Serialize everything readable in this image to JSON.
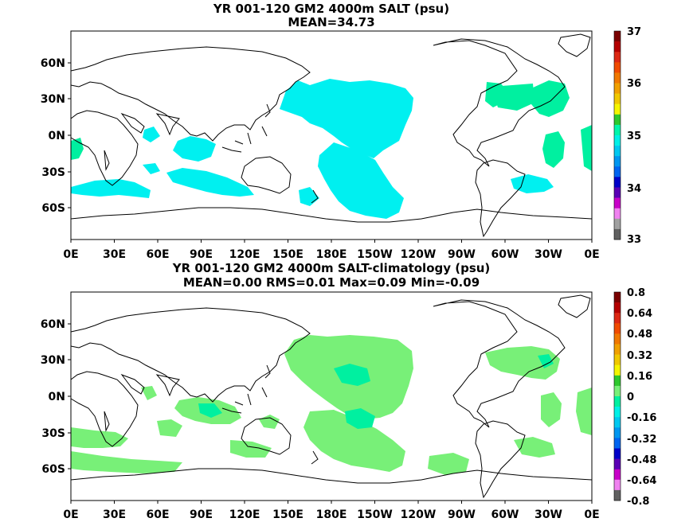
{
  "panels": [
    {
      "title": "YR 001-120 GM2 4000m SALT (psu)",
      "subtitle": "MEAN=34.73",
      "x_ticks": [
        "0E",
        "30E",
        "60E",
        "90E",
        "120E",
        "150E",
        "180E",
        "150W",
        "120W",
        "90W",
        "60W",
        "30W",
        "0E"
      ],
      "y_ticks": [
        "60N",
        "30N",
        "0N",
        "30S",
        "60S"
      ],
      "colorbar": {
        "labels": [
          "37",
          "36",
          "35",
          "34",
          "33"
        ],
        "colors": [
          "#7a0000",
          "#b40000",
          "#dc2814",
          "#f04b00",
          "#f07800",
          "#f0a000",
          "#f0c800",
          "#f5f500",
          "#2dc82d",
          "#00f5aa",
          "#00f0e6",
          "#00c8f0",
          "#0096f0",
          "#0064f0",
          "#0000c8",
          "#5a00b4",
          "#c800c8",
          "#f082f0",
          "#a0a0a0",
          "#606060"
        ]
      }
    },
    {
      "title": "YR 001-120 GM2 4000m SALT-climatology (psu)",
      "subtitle": "MEAN=0.00   RMS=0.01   Max=0.09   Min=-0.09",
      "x_ticks": [
        "0E",
        "30E",
        "60E",
        "90E",
        "120E",
        "150E",
        "180E",
        "150W",
        "120W",
        "90W",
        "60W",
        "30W",
        "0E"
      ],
      "y_ticks": [
        "60N",
        "30N",
        "0N",
        "30S",
        "60S"
      ],
      "colorbar": {
        "labels": [
          "0.8",
          "0.64",
          "0.48",
          "0.32",
          "0.16",
          "0",
          "-0.16",
          "-0.32",
          "-0.48",
          "-0.64",
          "-0.8"
        ],
        "colors": [
          "#7a0000",
          "#b40000",
          "#dc2814",
          "#f04b00",
          "#f07800",
          "#f0a000",
          "#f0c800",
          "#f5f500",
          "#2dc82d",
          "#78f078",
          "#00f0a0",
          "#00f0e6",
          "#00c8f0",
          "#0096f0",
          "#0064f0",
          "#0000c8",
          "#5a00b4",
          "#c800c8",
          "#f082f0",
          "#606060"
        ]
      }
    }
  ],
  "style": {
    "top_fill": "#00f0f0",
    "top_fill_high": "#00f0a0",
    "bottom_fill": "#78f078",
    "bottom_fill_alt": "#00f0a0",
    "coast": "#000000"
  }
}
